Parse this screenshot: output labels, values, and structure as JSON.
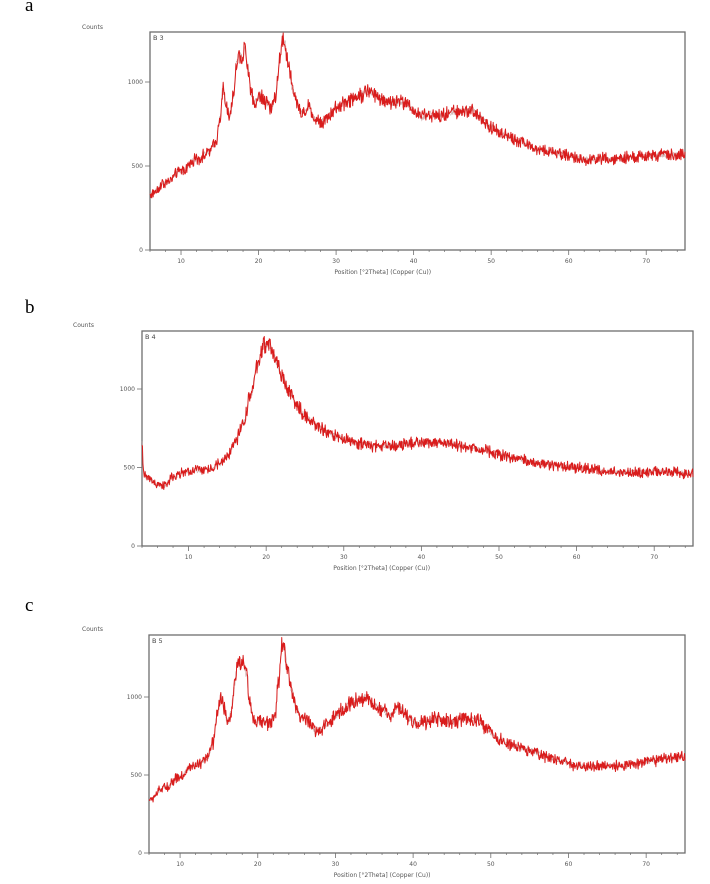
{
  "figure": {
    "panels": [
      "a",
      "b",
      "c"
    ]
  },
  "chart_data": [
    {
      "type": "line",
      "panel_label": "a",
      "sample_label": "B 3",
      "title": "",
      "xlabel": "Position [°2Theta] (Copper (Cu))",
      "ylabel": "Counts",
      "xlim": [
        6,
        75
      ],
      "ylim": [
        0,
        1300
      ],
      "xticks": [
        10,
        20,
        30,
        40,
        50,
        60,
        70
      ],
      "yticks": [
        0,
        500,
        1000
      ],
      "grid": false,
      "line_color": "#d91c1c",
      "series": [
        {
          "name": "B 3",
          "x": [
            6,
            8,
            10,
            12,
            13.5,
            14.5,
            15.0,
            15.4,
            15.8,
            16.3,
            16.7,
            17.2,
            17.6,
            17.9,
            18.2,
            18.6,
            19.0,
            19.5,
            20.2,
            21.0,
            21.6,
            22.2,
            22.7,
            23.1,
            23.4,
            23.8,
            24.4,
            25.0,
            25.6,
            26.2,
            26.6,
            27.2,
            28.0,
            29.0,
            30.0,
            31.0,
            32.0,
            33.0,
            34.0,
            35.0,
            36.0,
            37.0,
            38.0,
            39.0,
            40.0,
            41.0,
            42.0,
            43.5,
            45.0,
            46.5,
            47.5,
            48.5,
            50.0,
            52.0,
            54.0,
            56.0,
            58.0,
            60.0,
            62.0,
            64.0,
            66.0,
            68.0,
            70.0,
            72.0,
            75.0
          ],
          "values": [
            330,
            400,
            470,
            540,
            580,
            640,
            780,
            960,
            860,
            790,
            900,
            1120,
            1170,
            1140,
            1200,
            1100,
            930,
            880,
            920,
            880,
            840,
            920,
            1120,
            1260,
            1230,
            1120,
            960,
            870,
            810,
            840,
            860,
            780,
            760,
            800,
            840,
            880,
            900,
            920,
            940,
            930,
            900,
            880,
            880,
            880,
            830,
            790,
            810,
            800,
            820,
            830,
            840,
            790,
            730,
            680,
            640,
            600,
            580,
            560,
            540,
            545,
            540,
            550,
            560,
            565,
            570
          ]
        }
      ]
    },
    {
      "type": "line",
      "panel_label": "b",
      "sample_label": "B 4",
      "title": "",
      "xlabel": "Position [°2Theta] (Copper (Cu))",
      "ylabel": "Counts",
      "xlim": [
        4,
        75
      ],
      "ylim": [
        0,
        1350
      ],
      "xticks": [
        10,
        20,
        30,
        40,
        50,
        60,
        70
      ],
      "yticks": [
        0,
        500,
        1000
      ],
      "grid": false,
      "line_color": "#d91c1c",
      "series": [
        {
          "name": "B 4",
          "x": [
            4.0,
            4.2,
            4.6,
            5.2,
            6.0,
            6.8,
            8.0,
            9.5,
            11.0,
            12.5,
            14.0,
            15.0,
            16.0,
            17.0,
            18.0,
            18.8,
            19.4,
            19.8,
            20.2,
            20.7,
            21.3,
            22.0,
            23.0,
            24.0,
            25.0,
            26.0,
            27.0,
            28.0,
            29.0,
            30.0,
            32.0,
            34.0,
            36.0,
            38.0,
            40.0,
            42.0,
            44.0,
            46.0,
            48.0,
            50.0,
            52.0,
            54.0,
            56.0,
            58.0,
            60.0,
            62.0,
            64.0,
            66.0,
            68.0,
            70.0,
            72.0,
            75.0
          ],
          "values": [
            660,
            470,
            440,
            420,
            390,
            380,
            440,
            470,
            480,
            490,
            520,
            570,
            660,
            780,
            960,
            1130,
            1240,
            1290,
            1280,
            1250,
            1180,
            1080,
            980,
            890,
            830,
            790,
            750,
            720,
            700,
            680,
            650,
            640,
            640,
            650,
            660,
            660,
            650,
            630,
            610,
            580,
            560,
            540,
            520,
            510,
            500,
            490,
            470,
            470,
            470,
            475,
            470,
            460
          ]
        }
      ]
    },
    {
      "type": "line",
      "panel_label": "c",
      "sample_label": "B 5",
      "title": "",
      "xlabel": "Position [°2Theta] (Copper (Cu))",
      "ylabel": "Counts",
      "xlim": [
        6,
        75
      ],
      "ylim": [
        0,
        1400
      ],
      "xticks": [
        10,
        20,
        30,
        40,
        50,
        60,
        70
      ],
      "yticks": [
        0,
        500,
        1000
      ],
      "grid": false,
      "line_color": "#d91c1c",
      "series": [
        {
          "name": "B 5",
          "x": [
            6,
            8,
            10,
            11.5,
            12.5,
            13.5,
            14.2,
            14.8,
            15.3,
            15.7,
            16.1,
            16.5,
            17.0,
            17.4,
            17.8,
            18.1,
            18.5,
            19.0,
            19.5,
            20.5,
            21.5,
            22.2,
            22.7,
            23.1,
            23.4,
            23.8,
            24.4,
            25.0,
            25.6,
            26.2,
            26.8,
            27.4,
            28.0,
            29.0,
            30.0,
            31.0,
            32.0,
            33.0,
            34.0,
            35.0,
            36.0,
            37.0,
            38.0,
            38.6,
            39.5,
            40.5,
            41.5,
            43.0,
            45.0,
            47.0,
            48.5,
            49.5,
            51.0,
            53.0,
            55.0,
            57.0,
            59.0,
            61.0,
            63.0,
            65.0,
            67.0,
            69.0,
            71.0,
            73.0,
            75.0
          ],
          "values": [
            340,
            420,
            490,
            550,
            570,
            600,
            700,
            900,
            1000,
            930,
            830,
            890,
            1080,
            1220,
            1200,
            1230,
            1150,
            960,
            860,
            840,
            830,
            880,
            1100,
            1330,
            1320,
            1190,
            1040,
            920,
            870,
            860,
            830,
            780,
            790,
            830,
            880,
            920,
            960,
            980,
            1000,
            950,
            920,
            880,
            930,
            920,
            860,
            830,
            840,
            860,
            840,
            860,
            850,
            790,
            730,
            690,
            660,
            620,
            590,
            560,
            555,
            560,
            560,
            575,
            590,
            610,
            615
          ]
        }
      ]
    }
  ]
}
